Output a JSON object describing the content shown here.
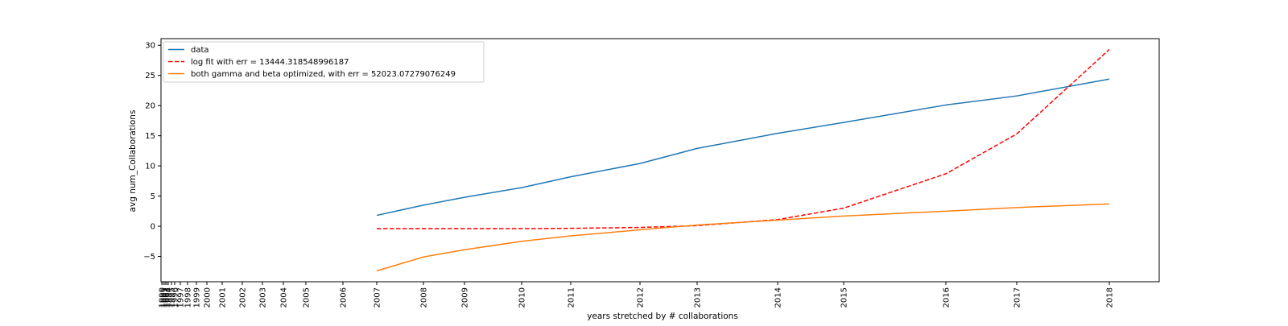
{
  "chart_data": {
    "type": "line",
    "title": "",
    "xlabel": "years stretched by # collaborations",
    "ylabel": "avg num_Collaborations",
    "ylim": [
      -9.2,
      31.1
    ],
    "yticks": [
      -5,
      0,
      5,
      10,
      15,
      20,
      25,
      30
    ],
    "xticks": [
      "1990",
      "1991",
      "1992",
      "1993",
      "1994",
      "1995",
      "1996",
      "1997",
      "1998",
      "1999",
      "2000",
      "2001",
      "2002",
      "2003",
      "2004",
      "2005",
      "2006",
      "2007",
      "2008",
      "2009",
      "2010",
      "2011",
      "2012",
      "2013",
      "2014",
      "2015",
      "2016",
      "2017",
      "2018"
    ],
    "grid": false,
    "legend_position": "upper left",
    "x_axis_note": "year ticks spaced unevenly (stretched by number of collaborations)",
    "series": [
      {
        "name": "data",
        "color": "#1f77b4",
        "style": "solid",
        "x": [
          "2007",
          "2008",
          "2009",
          "2010",
          "2011",
          "2012",
          "2013",
          "2014",
          "2015",
          "2016",
          "2017",
          "2018"
        ],
        "values": [
          1.8,
          3.5,
          4.8,
          6.4,
          8.2,
          10.4,
          12.9,
          15.4,
          17.2,
          20.1,
          21.6,
          24.4
        ]
      },
      {
        "name": "log fit with err = 13444.318548996187",
        "color": "#ff0000",
        "style": "dashed",
        "x": [
          "2007",
          "2008",
          "2009",
          "2010",
          "2011",
          "2012",
          "2013",
          "2014",
          "2015",
          "2016",
          "2017",
          "2018"
        ],
        "values": [
          -0.4,
          -0.4,
          -0.4,
          -0.4,
          -0.35,
          -0.2,
          0.1,
          1.1,
          3.0,
          8.7,
          15.3,
          29.3
        ]
      },
      {
        "name": "both gamma and beta optimized, with err = 52023.07279076249",
        "color": "#ff7f0e",
        "style": "solid",
        "x": [
          "2007",
          "2008",
          "2009",
          "2010",
          "2011",
          "2012",
          "2013",
          "2014",
          "2015",
          "2016",
          "2017",
          "2018"
        ],
        "values": [
          -7.4,
          -5.1,
          -3.9,
          -2.5,
          -1.6,
          -0.6,
          0.2,
          1.0,
          1.7,
          2.5,
          3.1,
          3.7
        ]
      }
    ]
  }
}
